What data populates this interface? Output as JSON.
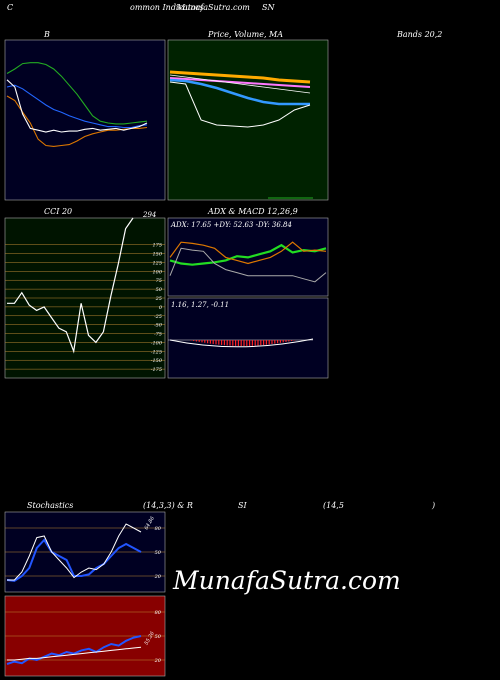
{
  "header": {
    "left_letter": "C",
    "site_a": "ommon Indicators",
    "site_b": "MunafaSutra.com",
    "symbol": "SN"
  },
  "titles": {
    "bb": "B",
    "price": "Price, Volume, MA",
    "bands": "Bands 20,2",
    "cci": "CCI 20",
    "adx": "ADX  & MACD 12,26,9",
    "stoch_a": "Stochastics",
    "stoch_b": "(14,3,3) & R",
    "rsi_a": "SI",
    "rsi_b": "(14,5",
    "rsi_c": ")"
  },
  "watermark": "MunafaSutra.com",
  "chart_data": [
    {
      "id": "bollinger",
      "type": "line",
      "series": [
        {
          "color": "#2266ff",
          "values": [
            0.7,
            0.72,
            0.68,
            0.62,
            0.56,
            0.5,
            0.45,
            0.42,
            0.38,
            0.35,
            0.32,
            0.3,
            0.28,
            0.26,
            0.26,
            0.25,
            0.25,
            0.27,
            0.28
          ]
        },
        {
          "color": "#22aa22",
          "values": [
            0.85,
            0.9,
            0.96,
            0.97,
            0.97,
            0.95,
            0.9,
            0.82,
            0.72,
            0.62,
            0.5,
            0.38,
            0.32,
            0.3,
            0.29,
            0.29,
            0.3,
            0.31,
            0.32
          ]
        },
        {
          "color": "#dd7700",
          "values": [
            0.6,
            0.55,
            0.42,
            0.3,
            0.12,
            0.05,
            0.04,
            0.05,
            0.06,
            0.1,
            0.15,
            0.18,
            0.2,
            0.22,
            0.22,
            0.23,
            0.24,
            0.24,
            0.25
          ]
        },
        {
          "color": "#ffffff",
          "values": [
            0.78,
            0.7,
            0.4,
            0.24,
            0.22,
            0.2,
            0.22,
            0.2,
            0.21,
            0.21,
            0.23,
            0.24,
            0.22,
            0.23,
            0.24,
            0.22,
            0.24,
            0.26,
            0.3
          ]
        }
      ]
    },
    {
      "id": "price",
      "type": "line",
      "series": [
        {
          "color": "#ffaa00",
          "values": [
            0.88,
            0.87,
            0.86,
            0.85,
            0.84,
            0.83,
            0.82,
            0.8,
            0.79,
            0.78
          ]
        },
        {
          "color": "#ff77ff",
          "values": [
            0.82,
            0.81,
            0.8,
            0.79,
            0.78,
            0.77,
            0.76,
            0.75,
            0.74,
            0.73
          ]
        },
        {
          "color": "#ffffff",
          "values": [
            0.85,
            0.83,
            0.81,
            0.79,
            0.77,
            0.75,
            0.73,
            0.71,
            0.69,
            0.67
          ]
        },
        {
          "color": "#3399ff",
          "values": [
            0.8,
            0.79,
            0.76,
            0.72,
            0.67,
            0.62,
            0.58,
            0.56,
            0.56,
            0.56
          ]
        },
        {
          "color": "#ffffff",
          "values": [
            0.78,
            0.76,
            0.4,
            0.35,
            0.34,
            0.33,
            0.35,
            0.4,
            0.5,
            0.55
          ]
        }
      ]
    },
    {
      "id": "cci",
      "type": "line",
      "ylim": [
        -200,
        250
      ],
      "yticks": [
        175,
        150,
        125,
        100,
        75,
        50,
        25,
        0,
        -25,
        -50,
        -75,
        -100,
        -125,
        -150,
        -175
      ],
      "last_label": "294",
      "values": [
        10,
        10,
        40,
        5,
        -10,
        0,
        -30,
        -60,
        -70,
        -125,
        10,
        -80,
        -100,
        -70,
        30,
        120,
        220,
        294
      ]
    },
    {
      "id": "adx",
      "type": "line",
      "label": "ADX: 17.65  +DY: 52.63  -DY: 36.84",
      "series": [
        {
          "color": "#22dd22",
          "values": [
            0.55,
            0.5,
            0.48,
            0.5,
            0.52,
            0.55,
            0.62,
            0.6,
            0.65,
            0.7,
            0.8,
            0.68,
            0.72,
            0.7,
            0.75
          ]
        },
        {
          "color": "#dd7700",
          "values": [
            0.6,
            0.85,
            0.83,
            0.8,
            0.75,
            0.6,
            0.55,
            0.5,
            0.55,
            0.6,
            0.7,
            0.85,
            0.7,
            0.72,
            0.7
          ]
        },
        {
          "color": "#aaaaaa",
          "values": [
            0.3,
            0.75,
            0.72,
            0.7,
            0.5,
            0.4,
            0.35,
            0.3,
            0.3,
            0.3,
            0.3,
            0.3,
            0.25,
            0.2,
            0.35
          ]
        }
      ]
    },
    {
      "id": "macd",
      "type": "line",
      "label": "1.16,  1.27,  -0.11"
    },
    {
      "id": "stochastic",
      "type": "line",
      "ylim": [
        0,
        100
      ],
      "yticks": [
        80,
        50,
        20
      ],
      "last_label": "64.86",
      "series": [
        {
          "color": "#2255ff",
          "values": [
            15,
            14,
            20,
            30,
            55,
            65,
            50,
            45,
            40,
            20,
            20,
            22,
            30,
            35,
            45,
            55,
            60,
            55,
            50
          ]
        },
        {
          "color": "#ffffff",
          "values": [
            15,
            15,
            25,
            45,
            68,
            70,
            50,
            40,
            30,
            18,
            25,
            30,
            28,
            35,
            50,
            70,
            85,
            80,
            75
          ]
        }
      ]
    },
    {
      "id": "rsi",
      "type": "line",
      "ylim": [
        0,
        100
      ],
      "yticks": [
        80,
        50,
        20
      ],
      "last_label": "55.26",
      "series": [
        {
          "color": "#2255ff",
          "values": [
            15,
            18,
            16,
            22,
            20,
            24,
            28,
            26,
            30,
            28,
            32,
            34,
            30,
            36,
            40,
            38,
            44,
            48,
            50
          ]
        },
        {
          "color": "#ffffff",
          "values": [
            20,
            20,
            21,
            22,
            22,
            23,
            24,
            25,
            26,
            27,
            28,
            29,
            30,
            31,
            32,
            33,
            34,
            35,
            36
          ]
        }
      ]
    }
  ]
}
